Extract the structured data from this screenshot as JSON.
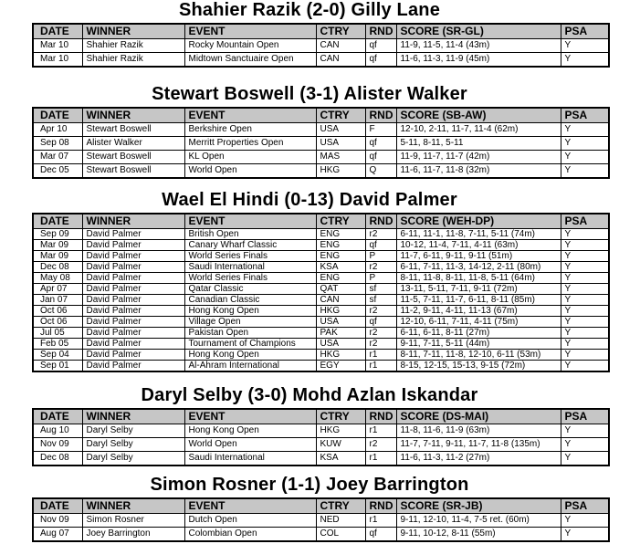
{
  "colors": {
    "header_background": "#c6c6c6",
    "border": "#000000",
    "text": "#000000",
    "page_background": "#ffffff"
  },
  "column_keys": [
    "date",
    "winner",
    "event",
    "ctry",
    "rnd",
    "score",
    "psa"
  ],
  "tables": [
    {
      "title": "Shahier Razik (2-0) Gilly Lane",
      "columns": [
        "DATE",
        "WINNER",
        "EVENT",
        "CTRY",
        "RND",
        "SCORE (SR-GL)",
        "PSA"
      ],
      "rows": [
        [
          "Mar 10",
          "Shahier Razik",
          "Rocky Mountain Open",
          "CAN",
          "qf",
          "11-9, 11-5, 11-4 (43m)",
          "Y"
        ],
        [
          "Mar 10",
          "Shahier Razik",
          "Midtown Sanctuaire Open",
          "CAN",
          "qf",
          "11-6, 11-3, 11-9 (45m)",
          "Y"
        ]
      ]
    },
    {
      "title": "Stewart Boswell (3-1) Alister Walker",
      "columns": [
        "DATE",
        "WINNER",
        "EVENT",
        "CTRY",
        "RND",
        "SCORE (SB-AW)",
        "PSA"
      ],
      "rows": [
        [
          "Apr 10",
          "Stewart Boswell",
          "Berkshire Open",
          "USA",
          "F",
          "12-10, 2-11, 11-7, 11-4 (62m)",
          "Y"
        ],
        [
          "Sep 08",
          "Alister Walker",
          "Merritt Properties Open",
          "USA",
          "qf",
          "5-11, 8-11, 5-11",
          "Y"
        ],
        [
          "Mar 07",
          "Stewart Boswell",
          "KL Open",
          "MAS",
          "qf",
          "11-9, 11-7, 11-7 (42m)",
          "Y"
        ],
        [
          "Dec 05",
          "Stewart Boswell",
          "World Open",
          "HKG",
          "Q",
          "11-6, 11-7, 11-8 (32m)",
          "Y"
        ]
      ]
    },
    {
      "title": "Wael El Hindi (0-13) David Palmer",
      "columns": [
        "DATE",
        "WINNER",
        "EVENT",
        "CTRY",
        "RND",
        "SCORE (WEH-DP)",
        "PSA"
      ],
      "rows": [
        [
          "Sep 09",
          "David Palmer",
          "British Open",
          "ENG",
          "r2",
          "6-11, 11-1, 11-8, 7-11, 5-11 (74m)",
          "Y"
        ],
        [
          "Mar 09",
          "David Palmer",
          "Canary Wharf Classic",
          "ENG",
          "qf",
          "10-12, 11-4, 7-11, 4-11 (63m)",
          "Y"
        ],
        [
          "Mar 09",
          "David Palmer",
          "World Series Finals",
          "ENG",
          "P",
          "11-7, 6-11, 9-11, 9-11 (51m)",
          "Y"
        ],
        [
          "Dec 08",
          "David Palmer",
          "Saudi International",
          "KSA",
          "r2",
          "6-11, 7-11, 11-3, 14-12, 2-11 (80m)",
          "Y"
        ],
        [
          "May 08",
          "David Palmer",
          "World Series Finals",
          "ENG",
          "P",
          "8-11, 11-8, 8-11, 11-8, 5-11 (64m)",
          "Y"
        ],
        [
          "Apr 07",
          "David Palmer",
          "Qatar Classic",
          "QAT",
          "sf",
          "13-11, 5-11, 7-11, 9-11 (72m)",
          "Y"
        ],
        [
          "Jan 07",
          "David Palmer",
          "Canadian Classic",
          "CAN",
          "sf",
          "11-5, 7-11, 11-7, 6-11, 8-11 (85m)",
          "Y"
        ],
        [
          "Oct 06",
          "David Palmer",
          "Hong Kong Open",
          "HKG",
          "r2",
          "11-2, 9-11, 4-11, 11-13 (67m)",
          "Y"
        ],
        [
          "Oct 06",
          "David Palmer",
          "Village Open",
          "USA",
          "qf",
          "12-10, 6-11, 7-11, 4-11 (75m)",
          "Y"
        ],
        [
          "Jul 05",
          "David Palmer",
          "Pakistan Open",
          "PAK",
          "r2",
          "6-11, 6-11, 8-11 (27m)",
          "Y"
        ],
        [
          "Feb 05",
          "David Palmer",
          "Tournament of Champions",
          "USA",
          "r2",
          "9-11, 7-11, 5-11 (44m)",
          "Y"
        ],
        [
          "Sep 04",
          "David Palmer",
          "Hong Kong Open",
          "HKG",
          "r1",
          "8-11, 7-11, 11-8, 12-10, 6-11 (53m)",
          "Y"
        ],
        [
          "Sep 01",
          "David Palmer",
          "Al-Ahram International",
          "EGY",
          "r1",
          "8-15, 12-15, 15-13, 9-15 (72m)",
          "Y"
        ]
      ]
    },
    {
      "title": "Daryl Selby (3-0) Mohd Azlan Iskandar",
      "columns": [
        "DATE",
        "WINNER",
        "EVENT",
        "CTRY",
        "RND",
        "SCORE (DS-MAI)",
        "PSA"
      ],
      "rows": [
        [
          "Aug 10",
          "Daryl Selby",
          "Hong Kong Open",
          "HKG",
          "r1",
          "11-8, 11-6, 11-9 (63m)",
          "Y"
        ],
        [
          "Nov 09",
          "Daryl Selby",
          "World Open",
          "KUW",
          "r2",
          "11-7, 7-11, 9-11, 11-7, 11-8 (135m)",
          "Y"
        ],
        [
          "Dec 08",
          "Daryl Selby",
          "Saudi International",
          "KSA",
          "r1",
          "11-6, 11-3, 11-2 (27m)",
          "Y"
        ]
      ]
    },
    {
      "title": "Simon Rosner (1-1) Joey Barrington",
      "columns": [
        "DATE",
        "WINNER",
        "EVENT",
        "CTRY",
        "RND",
        "SCORE (SR-JB)",
        "PSA"
      ],
      "rows": [
        [
          "Nov 09",
          "Simon Rosner",
          "Dutch Open",
          "NED",
          "r1",
          "9-11, 12-10, 11-4, 7-5 ret. (60m)",
          "Y"
        ],
        [
          "Aug 07",
          "Joey Barrington",
          "Colombian Open",
          "COL",
          "qf",
          "9-11, 10-12, 8-11 (55m)",
          "Y"
        ]
      ]
    }
  ]
}
